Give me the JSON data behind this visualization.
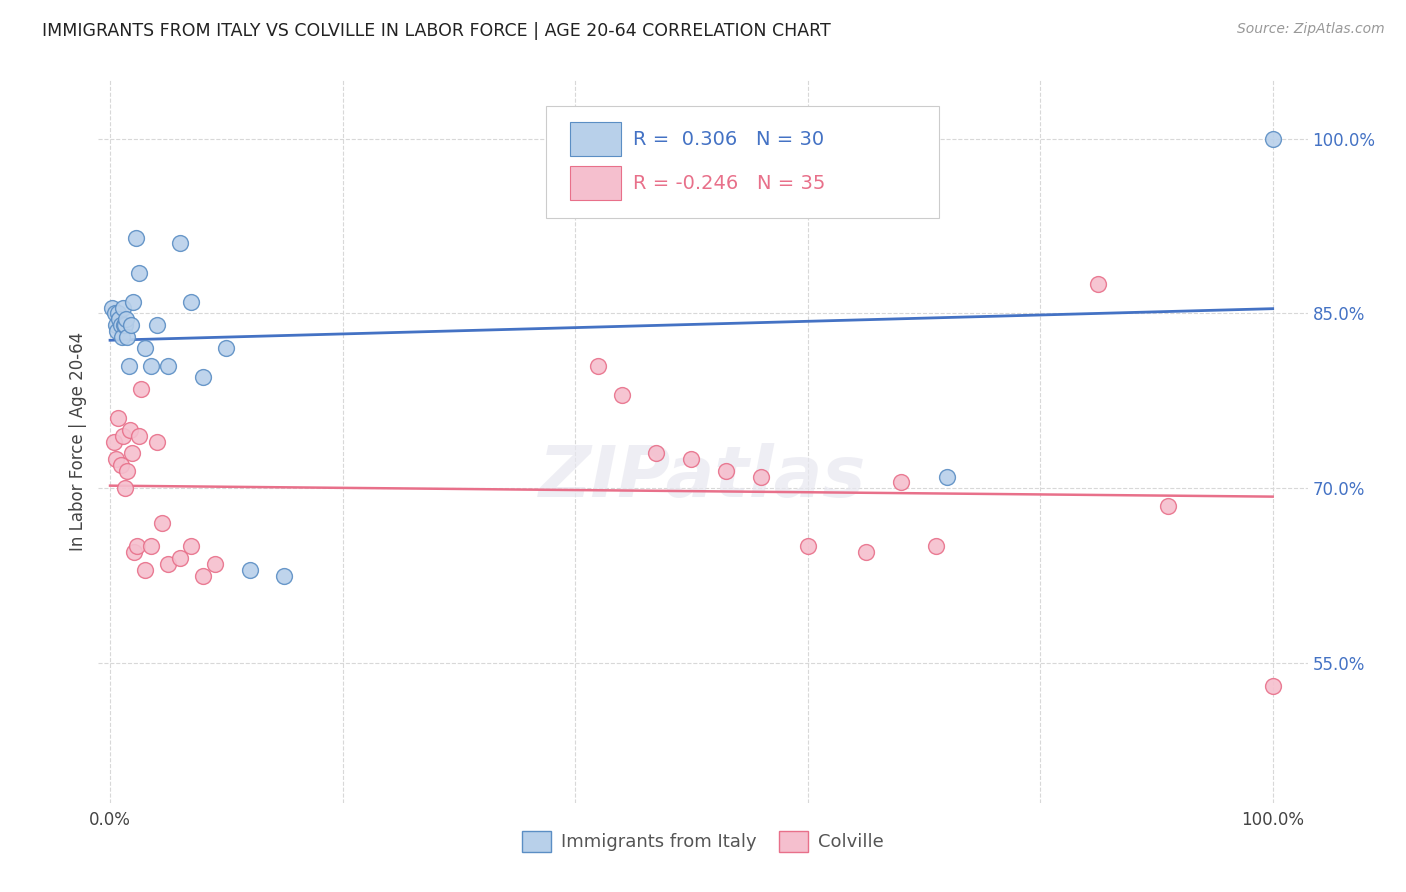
{
  "title": "IMMIGRANTS FROM ITALY VS COLVILLE IN LABOR FORCE | AGE 20-64 CORRELATION CHART",
  "source": "Source: ZipAtlas.com",
  "ylabel": "In Labor Force | Age 20-64",
  "right_yticks": [
    55.0,
    70.0,
    85.0,
    100.0
  ],
  "legend_italy": {
    "R": 0.306,
    "N": 30
  },
  "legend_colville": {
    "R": -0.246,
    "N": 35
  },
  "italy_color": "#b8d0ea",
  "colville_color": "#f5bfce",
  "italy_edge_color": "#5b8ec4",
  "colville_edge_color": "#e8708a",
  "italy_line_color": "#4472c4",
  "colville_line_color": "#e8708a",
  "text_color_blue": "#4472c4",
  "text_color_pink": "#e8708a",
  "background_color": "#ffffff",
  "grid_color": "#d8d8d8",
  "italy_x": [
    0.2,
    0.4,
    0.5,
    0.6,
    0.7,
    0.8,
    0.9,
    1.0,
    1.1,
    1.2,
    1.3,
    1.4,
    1.5,
    1.6,
    1.8,
    2.0,
    2.2,
    2.5,
    3.0,
    3.5,
    4.0,
    5.0,
    6.0,
    7.0,
    8.0,
    10.0,
    12.0,
    15.0,
    72.0,
    100.0
  ],
  "italy_y": [
    85.5,
    85.0,
    84.0,
    83.5,
    85.0,
    84.5,
    84.0,
    83.0,
    85.5,
    84.0,
    84.0,
    84.5,
    83.0,
    80.5,
    84.0,
    86.0,
    91.5,
    88.5,
    82.0,
    80.5,
    84.0,
    80.5,
    91.0,
    86.0,
    79.5,
    82.0,
    63.0,
    62.5,
    71.0,
    100.0
  ],
  "colville_x": [
    0.3,
    0.5,
    0.7,
    0.9,
    1.1,
    1.3,
    1.5,
    1.7,
    1.9,
    2.1,
    2.3,
    2.5,
    2.7,
    3.0,
    3.5,
    4.0,
    4.5,
    5.0,
    6.0,
    7.0,
    8.0,
    9.0,
    42.0,
    44.0,
    47.0,
    50.0,
    53.0,
    56.0,
    60.0,
    65.0,
    68.0,
    71.0,
    85.0,
    91.0,
    100.0
  ],
  "colville_y": [
    74.0,
    72.5,
    76.0,
    72.0,
    74.5,
    70.0,
    71.5,
    75.0,
    73.0,
    64.5,
    65.0,
    74.5,
    78.5,
    63.0,
    65.0,
    74.0,
    67.0,
    63.5,
    64.0,
    65.0,
    62.5,
    63.5,
    80.5,
    78.0,
    73.0,
    72.5,
    71.5,
    71.0,
    65.0,
    64.5,
    70.5,
    65.0,
    87.5,
    68.5,
    53.0
  ],
  "ylim_min": 43.0,
  "ylim_max": 105.0,
  "xlim_min": -1.0,
  "xlim_max": 103.0
}
